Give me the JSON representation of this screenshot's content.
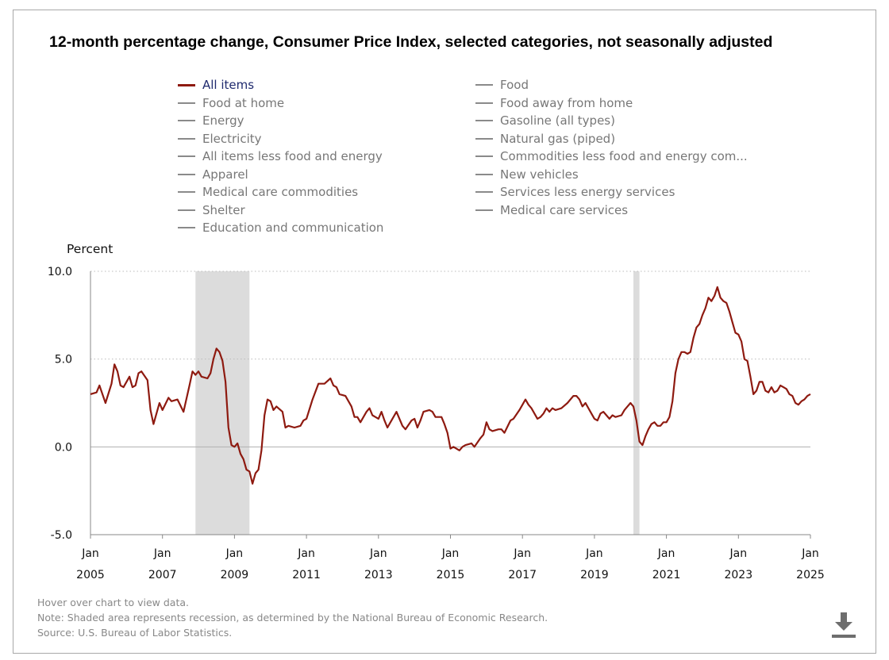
{
  "title": "12-month percentage change, Consumer Price Index, selected categories, not seasonally adjusted",
  "legend": {
    "col1": [
      {
        "label": "All items",
        "active": true
      },
      {
        "label": "Food at home",
        "active": false
      },
      {
        "label": "Energy",
        "active": false
      },
      {
        "label": "Electricity",
        "active": false
      },
      {
        "label": "All items less food and energy",
        "active": false
      },
      {
        "label": "Apparel",
        "active": false
      },
      {
        "label": "Medical care commodities",
        "active": false
      },
      {
        "label": "Shelter",
        "active": false
      },
      {
        "label": "Education and communication",
        "active": false
      }
    ],
    "col2": [
      {
        "label": "Food",
        "active": false
      },
      {
        "label": "Food away from home",
        "active": false
      },
      {
        "label": "Gasoline (all types)",
        "active": false
      },
      {
        "label": "Natural gas (piped)",
        "active": false
      },
      {
        "label": "Commodities less food and energy com...",
        "active": false
      },
      {
        "label": "New vehicles",
        "active": false
      },
      {
        "label": "Services less energy services",
        "active": false
      },
      {
        "label": "Medical care services",
        "active": false
      }
    ]
  },
  "footer": {
    "hover": "Hover over chart to view data.",
    "note": "Note: Shaded area represents recession, as determined by the National Bureau of Economic Research.",
    "source": "Source: U.S. Bureau of Labor Statistics."
  },
  "icons": {
    "download": "download-icon"
  },
  "colors": {
    "series": "#8e1a10",
    "recession": "#dcdcdc",
    "grid": "#bbbbbb"
  },
  "chart_data": {
    "type": "line",
    "ylabel": "Percent",
    "ylim": [
      -5,
      10
    ],
    "yticks": [
      "10.0",
      "5.0",
      "0.0",
      "-5.0"
    ],
    "xlim": [
      "2005-01",
      "2025-01"
    ],
    "xticks": [
      {
        "month": "Jan",
        "year": "2005"
      },
      {
        "month": "Jan",
        "year": "2007"
      },
      {
        "month": "Jan",
        "year": "2009"
      },
      {
        "month": "Jan",
        "year": "2011"
      },
      {
        "month": "Jan",
        "year": "2013"
      },
      {
        "month": "Jan",
        "year": "2015"
      },
      {
        "month": "Jan",
        "year": "2017"
      },
      {
        "month": "Jan",
        "year": "2019"
      },
      {
        "month": "Jan",
        "year": "2021"
      },
      {
        "month": "Jan",
        "year": "2023"
      },
      {
        "month": "Jan",
        "year": "2025"
      }
    ],
    "grid": "horizontal dotted",
    "recessions": [
      [
        "2007-12",
        "2009-06"
      ],
      [
        "2020-02",
        "2020-04"
      ]
    ],
    "series": [
      {
        "name": "All items",
        "points": [
          [
            "2005-01",
            3.0
          ],
          [
            "2005-03",
            3.1
          ],
          [
            "2005-04",
            3.5
          ],
          [
            "2005-06",
            2.5
          ],
          [
            "2005-08",
            3.6
          ],
          [
            "2005-09",
            4.7
          ],
          [
            "2005-10",
            4.3
          ],
          [
            "2005-11",
            3.5
          ],
          [
            "2005-12",
            3.4
          ],
          [
            "2006-02",
            4.0
          ],
          [
            "2006-03",
            3.4
          ],
          [
            "2006-04",
            3.5
          ],
          [
            "2006-05",
            4.2
          ],
          [
            "2006-06",
            4.3
          ],
          [
            "2006-08",
            3.8
          ],
          [
            "2006-09",
            2.1
          ],
          [
            "2006-10",
            1.3
          ],
          [
            "2006-12",
            2.5
          ],
          [
            "2007-01",
            2.1
          ],
          [
            "2007-03",
            2.8
          ],
          [
            "2007-04",
            2.6
          ],
          [
            "2007-06",
            2.7
          ],
          [
            "2007-08",
            2.0
          ],
          [
            "2007-10",
            3.5
          ],
          [
            "2007-11",
            4.3
          ],
          [
            "2007-12",
            4.1
          ],
          [
            "2008-01",
            4.3
          ],
          [
            "2008-02",
            4.0
          ],
          [
            "2008-04",
            3.9
          ],
          [
            "2008-05",
            4.2
          ],
          [
            "2008-06",
            5.0
          ],
          [
            "2008-07",
            5.6
          ],
          [
            "2008-08",
            5.4
          ],
          [
            "2008-09",
            4.9
          ],
          [
            "2008-10",
            3.7
          ],
          [
            "2008-11",
            1.1
          ],
          [
            "2008-12",
            0.1
          ],
          [
            "2009-01",
            0.0
          ],
          [
            "2009-02",
            0.2
          ],
          [
            "2009-03",
            -0.4
          ],
          [
            "2009-04",
            -0.7
          ],
          [
            "2009-05",
            -1.3
          ],
          [
            "2009-06",
            -1.4
          ],
          [
            "2009-07",
            -2.1
          ],
          [
            "2009-08",
            -1.5
          ],
          [
            "2009-09",
            -1.3
          ],
          [
            "2009-10",
            -0.2
          ],
          [
            "2009-11",
            1.8
          ],
          [
            "2009-12",
            2.7
          ],
          [
            "2010-01",
            2.6
          ],
          [
            "2010-02",
            2.1
          ],
          [
            "2010-03",
            2.3
          ],
          [
            "2010-05",
            2.0
          ],
          [
            "2010-06",
            1.1
          ],
          [
            "2010-07",
            1.2
          ],
          [
            "2010-09",
            1.1
          ],
          [
            "2010-11",
            1.2
          ],
          [
            "2010-12",
            1.5
          ],
          [
            "2011-01",
            1.6
          ],
          [
            "2011-03",
            2.7
          ],
          [
            "2011-05",
            3.6
          ],
          [
            "2011-07",
            3.6
          ],
          [
            "2011-09",
            3.9
          ],
          [
            "2011-10",
            3.5
          ],
          [
            "2011-11",
            3.4
          ],
          [
            "2011-12",
            3.0
          ],
          [
            "2012-02",
            2.9
          ],
          [
            "2012-04",
            2.3
          ],
          [
            "2012-05",
            1.7
          ],
          [
            "2012-06",
            1.7
          ],
          [
            "2012-07",
            1.4
          ],
          [
            "2012-09",
            2.0
          ],
          [
            "2012-10",
            2.2
          ],
          [
            "2012-11",
            1.8
          ],
          [
            "2012-12",
            1.7
          ],
          [
            "2013-01",
            1.6
          ],
          [
            "2013-02",
            2.0
          ],
          [
            "2013-03",
            1.5
          ],
          [
            "2013-04",
            1.1
          ],
          [
            "2013-05",
            1.4
          ],
          [
            "2013-07",
            2.0
          ],
          [
            "2013-09",
            1.2
          ],
          [
            "2013-10",
            1.0
          ],
          [
            "2013-12",
            1.5
          ],
          [
            "2014-01",
            1.6
          ],
          [
            "2014-02",
            1.1
          ],
          [
            "2014-03",
            1.5
          ],
          [
            "2014-04",
            2.0
          ],
          [
            "2014-06",
            2.1
          ],
          [
            "2014-07",
            2.0
          ],
          [
            "2014-08",
            1.7
          ],
          [
            "2014-10",
            1.7
          ],
          [
            "2014-11",
            1.3
          ],
          [
            "2014-12",
            0.8
          ],
          [
            "2015-01",
            -0.1
          ],
          [
            "2015-02",
            0.0
          ],
          [
            "2015-04",
            -0.2
          ],
          [
            "2015-05",
            0.0
          ],
          [
            "2015-06",
            0.1
          ],
          [
            "2015-08",
            0.2
          ],
          [
            "2015-09",
            0.0
          ],
          [
            "2015-11",
            0.5
          ],
          [
            "2015-12",
            0.7
          ],
          [
            "2016-01",
            1.4
          ],
          [
            "2016-02",
            1.0
          ],
          [
            "2016-03",
            0.9
          ],
          [
            "2016-05",
            1.0
          ],
          [
            "2016-06",
            1.0
          ],
          [
            "2016-07",
            0.8
          ],
          [
            "2016-09",
            1.5
          ],
          [
            "2016-10",
            1.6
          ],
          [
            "2016-12",
            2.1
          ],
          [
            "2017-02",
            2.7
          ],
          [
            "2017-03",
            2.4
          ],
          [
            "2017-04",
            2.2
          ],
          [
            "2017-06",
            1.6
          ],
          [
            "2017-07",
            1.7
          ],
          [
            "2017-08",
            1.9
          ],
          [
            "2017-09",
            2.2
          ],
          [
            "2017-10",
            2.0
          ],
          [
            "2017-11",
            2.2
          ],
          [
            "2017-12",
            2.1
          ],
          [
            "2018-02",
            2.2
          ],
          [
            "2018-04",
            2.5
          ],
          [
            "2018-06",
            2.9
          ],
          [
            "2018-07",
            2.9
          ],
          [
            "2018-08",
            2.7
          ],
          [
            "2018-09",
            2.3
          ],
          [
            "2018-10",
            2.5
          ],
          [
            "2018-12",
            1.9
          ],
          [
            "2019-01",
            1.6
          ],
          [
            "2019-02",
            1.5
          ],
          [
            "2019-03",
            1.9
          ],
          [
            "2019-04",
            2.0
          ],
          [
            "2019-05",
            1.8
          ],
          [
            "2019-06",
            1.6
          ],
          [
            "2019-07",
            1.8
          ],
          [
            "2019-08",
            1.7
          ],
          [
            "2019-10",
            1.8
          ],
          [
            "2019-11",
            2.1
          ],
          [
            "2019-12",
            2.3
          ],
          [
            "2020-01",
            2.5
          ],
          [
            "2020-02",
            2.3
          ],
          [
            "2020-03",
            1.5
          ],
          [
            "2020-04",
            0.3
          ],
          [
            "2020-05",
            0.1
          ],
          [
            "2020-06",
            0.6
          ],
          [
            "2020-07",
            1.0
          ],
          [
            "2020-08",
            1.3
          ],
          [
            "2020-09",
            1.4
          ],
          [
            "2020-10",
            1.2
          ],
          [
            "2020-11",
            1.2
          ],
          [
            "2020-12",
            1.4
          ],
          [
            "2021-01",
            1.4
          ],
          [
            "2021-02",
            1.7
          ],
          [
            "2021-03",
            2.6
          ],
          [
            "2021-04",
            4.2
          ],
          [
            "2021-05",
            5.0
          ],
          [
            "2021-06",
            5.4
          ],
          [
            "2021-07",
            5.4
          ],
          [
            "2021-08",
            5.3
          ],
          [
            "2021-09",
            5.4
          ],
          [
            "2021-10",
            6.2
          ],
          [
            "2021-11",
            6.8
          ],
          [
            "2021-12",
            7.0
          ],
          [
            "2022-01",
            7.5
          ],
          [
            "2022-02",
            7.9
          ],
          [
            "2022-03",
            8.5
          ],
          [
            "2022-04",
            8.3
          ],
          [
            "2022-05",
            8.6
          ],
          [
            "2022-06",
            9.1
          ],
          [
            "2022-07",
            8.5
          ],
          [
            "2022-08",
            8.3
          ],
          [
            "2022-09",
            8.2
          ],
          [
            "2022-10",
            7.7
          ],
          [
            "2022-11",
            7.1
          ],
          [
            "2022-12",
            6.5
          ],
          [
            "2023-01",
            6.4
          ],
          [
            "2023-02",
            6.0
          ],
          [
            "2023-03",
            5.0
          ],
          [
            "2023-04",
            4.9
          ],
          [
            "2023-05",
            4.0
          ],
          [
            "2023-06",
            3.0
          ],
          [
            "2023-07",
            3.2
          ],
          [
            "2023-08",
            3.7
          ],
          [
            "2023-09",
            3.7
          ],
          [
            "2023-10",
            3.2
          ],
          [
            "2023-11",
            3.1
          ],
          [
            "2023-12",
            3.4
          ],
          [
            "2024-01",
            3.1
          ],
          [
            "2024-02",
            3.2
          ],
          [
            "2024-03",
            3.5
          ],
          [
            "2024-04",
            3.4
          ],
          [
            "2024-05",
            3.3
          ],
          [
            "2024-06",
            3.0
          ],
          [
            "2024-07",
            2.9
          ],
          [
            "2024-08",
            2.5
          ],
          [
            "2024-09",
            2.4
          ],
          [
            "2024-10",
            2.6
          ],
          [
            "2024-11",
            2.7
          ],
          [
            "2024-12",
            2.9
          ],
          [
            "2025-01",
            3.0
          ]
        ]
      }
    ]
  }
}
